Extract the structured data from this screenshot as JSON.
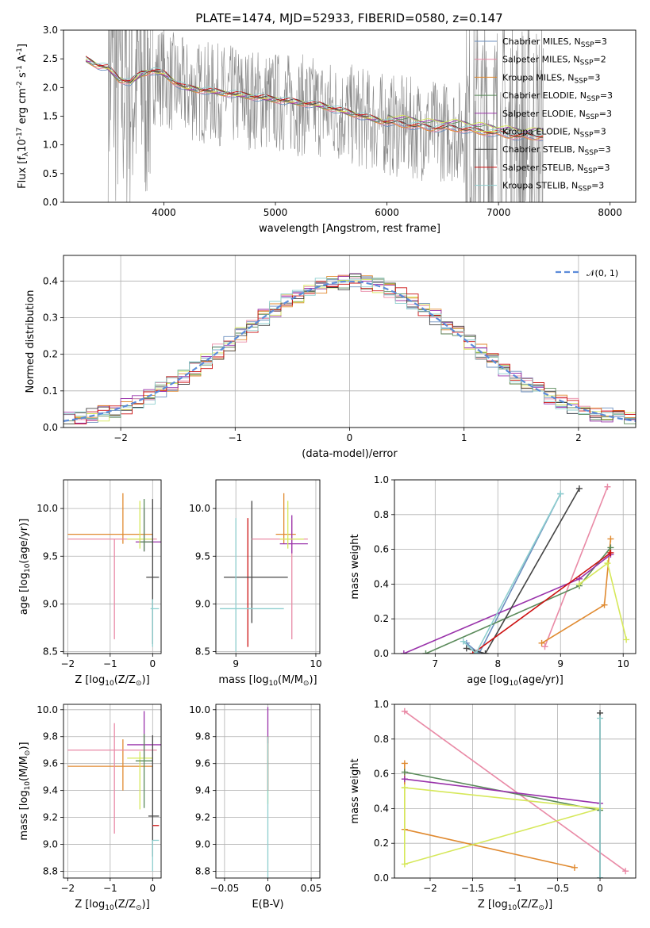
{
  "colors": {
    "chabrier_miles": "#6c8fbf",
    "salpeter_miles": "#e98aa6",
    "kroupa_miles": "#e08a30",
    "chabrier_elodie": "#5a8a5a",
    "salpeter_elodie": "#9932aa",
    "kroupa_elodie": "#d6e85a",
    "chabrier_stelib": "#444444",
    "salpeter_stelib": "#cc1010",
    "kroupa_stelib": "#8ecfcf",
    "data": "#888888",
    "normal": "#5b8bd9"
  },
  "chart_data": [
    {
      "id": "spectrum",
      "type": "line",
      "title": "PLATE=1474, MJD=52933, FIBERID=0580, z=0.147",
      "xlabel": "wavelength [Angstrom, rest frame]",
      "ylabel": "Flux [f$_\\lambda$10$^{-17}$ erg cm$^{-2}$ s$^{-1}$ A$^{-1}$]",
      "xlim": [
        3100,
        8230
      ],
      "ylim": [
        0,
        3.0
      ],
      "xticks": [
        4000,
        5000,
        6000,
        7000,
        8000
      ],
      "yticks": [
        0.0,
        0.5,
        1.0,
        1.5,
        2.0,
        2.5,
        3.0
      ],
      "grid": false,
      "legend_position": "top-right",
      "legend": [
        {
          "label": "Chabrier MILES, N$_{SSP}$=3",
          "color_key": "chabrier_miles"
        },
        {
          "label": "Salpeter MILES, N$_{SSP}$=2",
          "color_key": "salpeter_miles"
        },
        {
          "label": "Kroupa MILES, N$_{SSP}$=3",
          "color_key": "kroupa_miles"
        },
        {
          "label": "Chabrier ELODIE, N$_{SSP}$=3",
          "color_key": "chabrier_elodie"
        },
        {
          "label": "Salpeter ELODIE, N$_{SSP}$=3",
          "color_key": "salpeter_elodie"
        },
        {
          "label": "Kroupa ELODIE, N$_{SSP}$=3",
          "color_key": "kroupa_elodie"
        },
        {
          "label": "Chabrier STELIB, N$_{SSP}$=3",
          "color_key": "chabrier_stelib"
        },
        {
          "label": "Salpeter STELIB, N$_{SSP}$=3",
          "color_key": "salpeter_stelib"
        },
        {
          "label": "Kroupa STELIB, N$_{SSP}$=3",
          "color_key": "kroupa_stelib"
        }
      ],
      "model_continuum": {
        "x": [
          3300,
          3400,
          3500,
          3600,
          3700,
          3800,
          3900,
          4000,
          4100,
          4200,
          4400,
          4600,
          4800,
          5000,
          5200,
          5400,
          5600,
          5800,
          6000,
          6200,
          6400,
          6600,
          6800,
          7000,
          7200,
          7400
        ],
        "y": [
          2.45,
          2.35,
          2.3,
          2.1,
          2.05,
          2.2,
          2.25,
          2.2,
          2.05,
          1.95,
          1.9,
          1.85,
          1.8,
          1.75,
          1.7,
          1.65,
          1.55,
          1.45,
          1.35,
          1.3,
          1.25,
          1.25,
          1.2,
          1.15,
          1.1,
          1.1
        ]
      },
      "data_range": [
        3500,
        7400
      ]
    },
    {
      "id": "residuals",
      "type": "step",
      "xlabel": "(data-model)/error",
      "ylabel": "Normed distribution",
      "xlim": [
        -2.5,
        2.5
      ],
      "ylim": [
        0,
        0.47
      ],
      "xticks": [
        -2,
        -1,
        0,
        1,
        2
      ],
      "yticks": [
        0.0,
        0.1,
        0.2,
        0.3,
        0.4
      ],
      "grid": true,
      "legend_position": "top-right",
      "legend": [
        {
          "label": "𝒩(0, 1)",
          "color_key": "normal"
        }
      ],
      "bin_edges_start": -2.5,
      "bin_width": 0.1,
      "bins": 50
    },
    {
      "id": "age_vs_Z",
      "type": "errorbar",
      "xlabel": "Z [log$_{10}$(Z/Z$_\\odot$)]",
      "ylabel": "age  [log$_{10}$(age/yr)]",
      "xlim": [
        -2.1,
        0.2
      ],
      "ylim": [
        8.48,
        10.3
      ],
      "xticks": [
        -2,
        -1,
        0
      ],
      "yticks": [
        8.5,
        9.0,
        9.5,
        10.0
      ],
      "grid": true,
      "points": [
        {
          "c": "kroupa_miles",
          "x": -0.7,
          "y": 9.73,
          "xe": [
            1.3,
            0.7
          ],
          "ye": [
            0.1,
            0.43
          ]
        },
        {
          "c": "salpeter_miles",
          "x": -0.9,
          "y": 9.68,
          "xe": [
            1.1,
            1.0
          ],
          "ye": [
            1.05,
            0.0
          ]
        },
        {
          "c": "salpeter_elodie",
          "x": -0.2,
          "y": 9.65,
          "xe": [
            0.2,
            0.4
          ],
          "ye": [
            0.1,
            0.35
          ]
        },
        {
          "c": "kroupa_elodie",
          "x": -0.3,
          "y": 9.68,
          "xe": [
            0.3,
            0.3
          ],
          "ye": [
            0.1,
            0.4
          ]
        },
        {
          "c": "chabrier_elodie",
          "x": -0.2,
          "y": 9.65,
          "xe": [
            0.1,
            0.2
          ],
          "ye": [
            0.1,
            0.45
          ]
        },
        {
          "c": "chabrier_stelib",
          "x": 0.0,
          "y": 9.28,
          "xe": [
            0.15,
            0.15
          ],
          "ye": [
            0.7,
            0.82
          ]
        },
        {
          "c": "kroupa_stelib",
          "x": 0.0,
          "y": 8.95,
          "xe": [
            0.05,
            0.15
          ],
          "ye": [
            0.4,
            0.1
          ]
        }
      ]
    },
    {
      "id": "age_vs_mass",
      "type": "errorbar",
      "xlabel": "mass [log$_{10}$(M/M$_\\odot$)]",
      "ylabel": "",
      "xlim": [
        8.75,
        10.05
      ],
      "ylim": [
        8.48,
        10.3
      ],
      "xticks": [
        9,
        10
      ],
      "yticks": [
        8.5,
        9.0,
        9.5,
        10.0
      ],
      "grid": true,
      "points": [
        {
          "c": "salpeter_stelib",
          "x": 9.15,
          "y": 9.9,
          "xe": [
            0.0,
            0.0
          ],
          "ye": [
            1.35,
            0.0
          ]
        },
        {
          "c": "chabrier_stelib",
          "x": 9.2,
          "y": 9.28,
          "xe": [
            0.35,
            0.45
          ],
          "ye": [
            0.48,
            0.8
          ]
        },
        {
          "c": "kroupa_stelib",
          "x": 9.0,
          "y": 8.95,
          "xe": [
            0.2,
            0.6
          ],
          "ye": [
            0.45,
            0.95
          ]
        },
        {
          "c": "kroupa_miles",
          "x": 9.6,
          "y": 9.73,
          "xe": [
            0.1,
            0.15
          ],
          "ye": [
            0.1,
            0.43
          ]
        },
        {
          "c": "salpeter_miles",
          "x": 9.7,
          "y": 9.68,
          "xe": [
            0.5,
            0.2
          ],
          "ye": [
            1.05,
            0.2
          ]
        },
        {
          "c": "salpeter_elodie",
          "x": 9.7,
          "y": 9.63,
          "xe": [
            0.15,
            0.2
          ],
          "ye": [
            0.1,
            0.3
          ]
        },
        {
          "c": "kroupa_elodie",
          "x": 9.65,
          "y": 9.68,
          "xe": [
            0.1,
            0.2
          ],
          "ye": [
            0.1,
            0.4
          ]
        }
      ]
    },
    {
      "id": "weight_vs_age",
      "type": "line",
      "xlabel": "age  [log$_{10}$(age/yr)]",
      "ylabel": "mass weight",
      "xlim": [
        6.35,
        10.2
      ],
      "ylim": [
        0.0,
        1.0
      ],
      "xticks": [
        7,
        8,
        9,
        10
      ],
      "yticks": [
        0.0,
        0.2,
        0.4,
        0.6,
        0.8,
        1.0
      ],
      "grid": true,
      "series": [
        {
          "c": "chabrier_miles",
          "x": [
            7.5,
            7.7,
            9.0
          ],
          "y": [
            0.06,
            0.0,
            0.92
          ]
        },
        {
          "c": "salpeter_miles",
          "x": [
            8.75,
            9.75
          ],
          "y": [
            0.04,
            0.96
          ]
        },
        {
          "c": "kroupa_miles",
          "x": [
            8.7,
            9.7,
            9.8
          ],
          "y": [
            0.06,
            0.28,
            0.66
          ]
        },
        {
          "c": "chabrier_elodie",
          "x": [
            6.85,
            9.3,
            9.8
          ],
          "y": [
            0.0,
            0.39,
            0.61
          ]
        },
        {
          "c": "salpeter_elodie",
          "x": [
            6.5,
            9.3,
            9.8
          ],
          "y": [
            0.0,
            0.43,
            0.57
          ]
        },
        {
          "c": "kroupa_elodie",
          "x": [
            9.3,
            9.75,
            10.05
          ],
          "y": [
            0.4,
            0.52,
            0.08
          ]
        },
        {
          "c": "chabrier_stelib",
          "x": [
            7.5,
            7.8,
            9.3
          ],
          "y": [
            0.03,
            0.0,
            0.95
          ]
        },
        {
          "c": "salpeter_stelib",
          "x": [
            7.6,
            9.8
          ],
          "y": [
            0.0,
            0.58
          ]
        },
        {
          "c": "kroupa_stelib",
          "x": [
            7.45,
            7.65,
            9.0
          ],
          "y": [
            0.07,
            0.0,
            0.92
          ]
        }
      ]
    },
    {
      "id": "mass_vs_Z",
      "type": "errorbar",
      "xlabel": "Z [log$_{10}$(Z/Z$_\\odot$)]",
      "ylabel": "mass [log$_{10}$(M/M$_\\odot$)]",
      "xlim": [
        -2.1,
        0.2
      ],
      "ylim": [
        8.75,
        10.04
      ],
      "xticks": [
        -2,
        -1,
        0
      ],
      "yticks": [
        8.8,
        9.0,
        9.2,
        9.4,
        9.6,
        9.8,
        10.0
      ],
      "grid": true,
      "points": [
        {
          "c": "kroupa_miles",
          "x": -0.7,
          "y": 9.58,
          "xe": [
            1.3,
            0.7
          ],
          "ye": [
            0.18,
            0.2
          ]
        },
        {
          "c": "salpeter_miles",
          "x": -0.9,
          "y": 9.7,
          "xe": [
            1.1,
            1.0
          ],
          "ye": [
            0.62,
            0.2
          ]
        },
        {
          "c": "salpeter_elodie",
          "x": -0.2,
          "y": 9.74,
          "xe": [
            0.4,
            0.4
          ],
          "ye": [
            0.1,
            0.25
          ]
        },
        {
          "c": "kroupa_elodie",
          "x": -0.3,
          "y": 9.64,
          "xe": [
            0.3,
            0.3
          ],
          "ye": [
            0.38,
            0.05
          ]
        },
        {
          "c": "chabrier_elodie",
          "x": -0.2,
          "y": 9.62,
          "xe": [
            0.2,
            0.2
          ],
          "ye": [
            0.35,
            0.2
          ]
        },
        {
          "c": "chabrier_stelib",
          "x": 0.0,
          "y": 9.21,
          "xe": [
            0.1,
            0.15
          ],
          "ye": [
            0.3,
            0.6
          ]
        },
        {
          "c": "salpeter_stelib",
          "x": 0.0,
          "y": 9.14,
          "xe": [
            0.0,
            0.15
          ],
          "ye": [
            0.0,
            0.0
          ]
        },
        {
          "c": "kroupa_stelib",
          "x": 0.0,
          "y": 9.03,
          "xe": [
            0.0,
            0.15
          ],
          "ye": [
            0.23,
            0.0
          ]
        }
      ]
    },
    {
      "id": "mass_vs_ebv",
      "type": "errorbar",
      "xlabel": "E(B-V)",
      "ylabel": "",
      "xlim": [
        -0.06,
        0.06
      ],
      "ylim": [
        8.75,
        10.04
      ],
      "xticks": [
        -0.05,
        0.0,
        0.05
      ],
      "yticks": [
        8.8,
        9.0,
        9.2,
        9.4,
        9.6,
        9.8,
        10.0
      ],
      "grid": true,
      "points": [
        {
          "c": "salpeter_elodie",
          "x": 0.0,
          "y": 9.9,
          "xe": [
            0,
            0
          ],
          "ye": [
            0.15,
            0.12
          ]
        },
        {
          "c": "kroupa_elodie",
          "x": 0.0,
          "y": 9.7,
          "xe": [
            0,
            0
          ],
          "ye": [
            0.4,
            0.1
          ]
        },
        {
          "c": "salpeter_stelib",
          "x": 0.0,
          "y": 9.6,
          "xe": [
            0,
            0
          ],
          "ye": [
            0.2,
            0.2
          ]
        },
        {
          "c": "kroupa_stelib",
          "x": 0.0,
          "y": 9.2,
          "xe": [
            0,
            0
          ],
          "ye": [
            0.45,
            0.6
          ]
        }
      ]
    },
    {
      "id": "weight_vs_Z",
      "type": "line",
      "xlabel": "Z [log$_{10}$(Z/Z$_\\odot$)]",
      "ylabel": "mass weight",
      "xlim": [
        -2.42,
        0.42
      ],
      "ylim": [
        0.0,
        1.0
      ],
      "xticks": [
        -2.0,
        -1.5,
        -1.0,
        -0.5,
        0.0
      ],
      "yticks": [
        0.0,
        0.2,
        0.4,
        0.6,
        0.8,
        1.0
      ],
      "grid": true,
      "series": [
        {
          "c": "salpeter_miles",
          "x": [
            -2.3,
            0.3
          ],
          "y": [
            0.96,
            0.04
          ]
        },
        {
          "c": "kroupa_miles",
          "x": [
            -2.3,
            -2.3,
            -0.3
          ],
          "y": [
            0.66,
            0.28,
            0.06
          ]
        },
        {
          "c": "chabrier_elodie",
          "x": [
            -2.3,
            0.0
          ],
          "y": [
            0.61,
            0.39
          ]
        },
        {
          "c": "salpeter_elodie",
          "x": [
            -2.3,
            0.0
          ],
          "y": [
            0.57,
            0.43
          ]
        },
        {
          "c": "kroupa_elodie",
          "x": [
            -2.3,
            -2.3,
            0.0,
            -2.3
          ],
          "y": [
            0.52,
            0.08,
            0.4,
            0.52
          ]
        },
        {
          "c": "chabrier_stelib",
          "x": [
            0.0,
            0.0
          ],
          "y": [
            0.95,
            0.0
          ]
        },
        {
          "c": "kroupa_stelib",
          "x": [
            0.0,
            0.0
          ],
          "y": [
            0.92,
            0.0
          ]
        }
      ]
    }
  ]
}
